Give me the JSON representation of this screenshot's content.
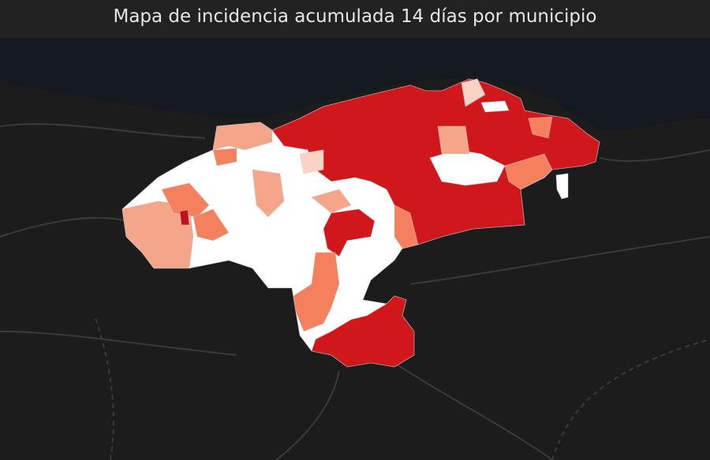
{
  "header": {
    "title": "Mapa de incidencia acumulada 14 días por municipio"
  }
}
